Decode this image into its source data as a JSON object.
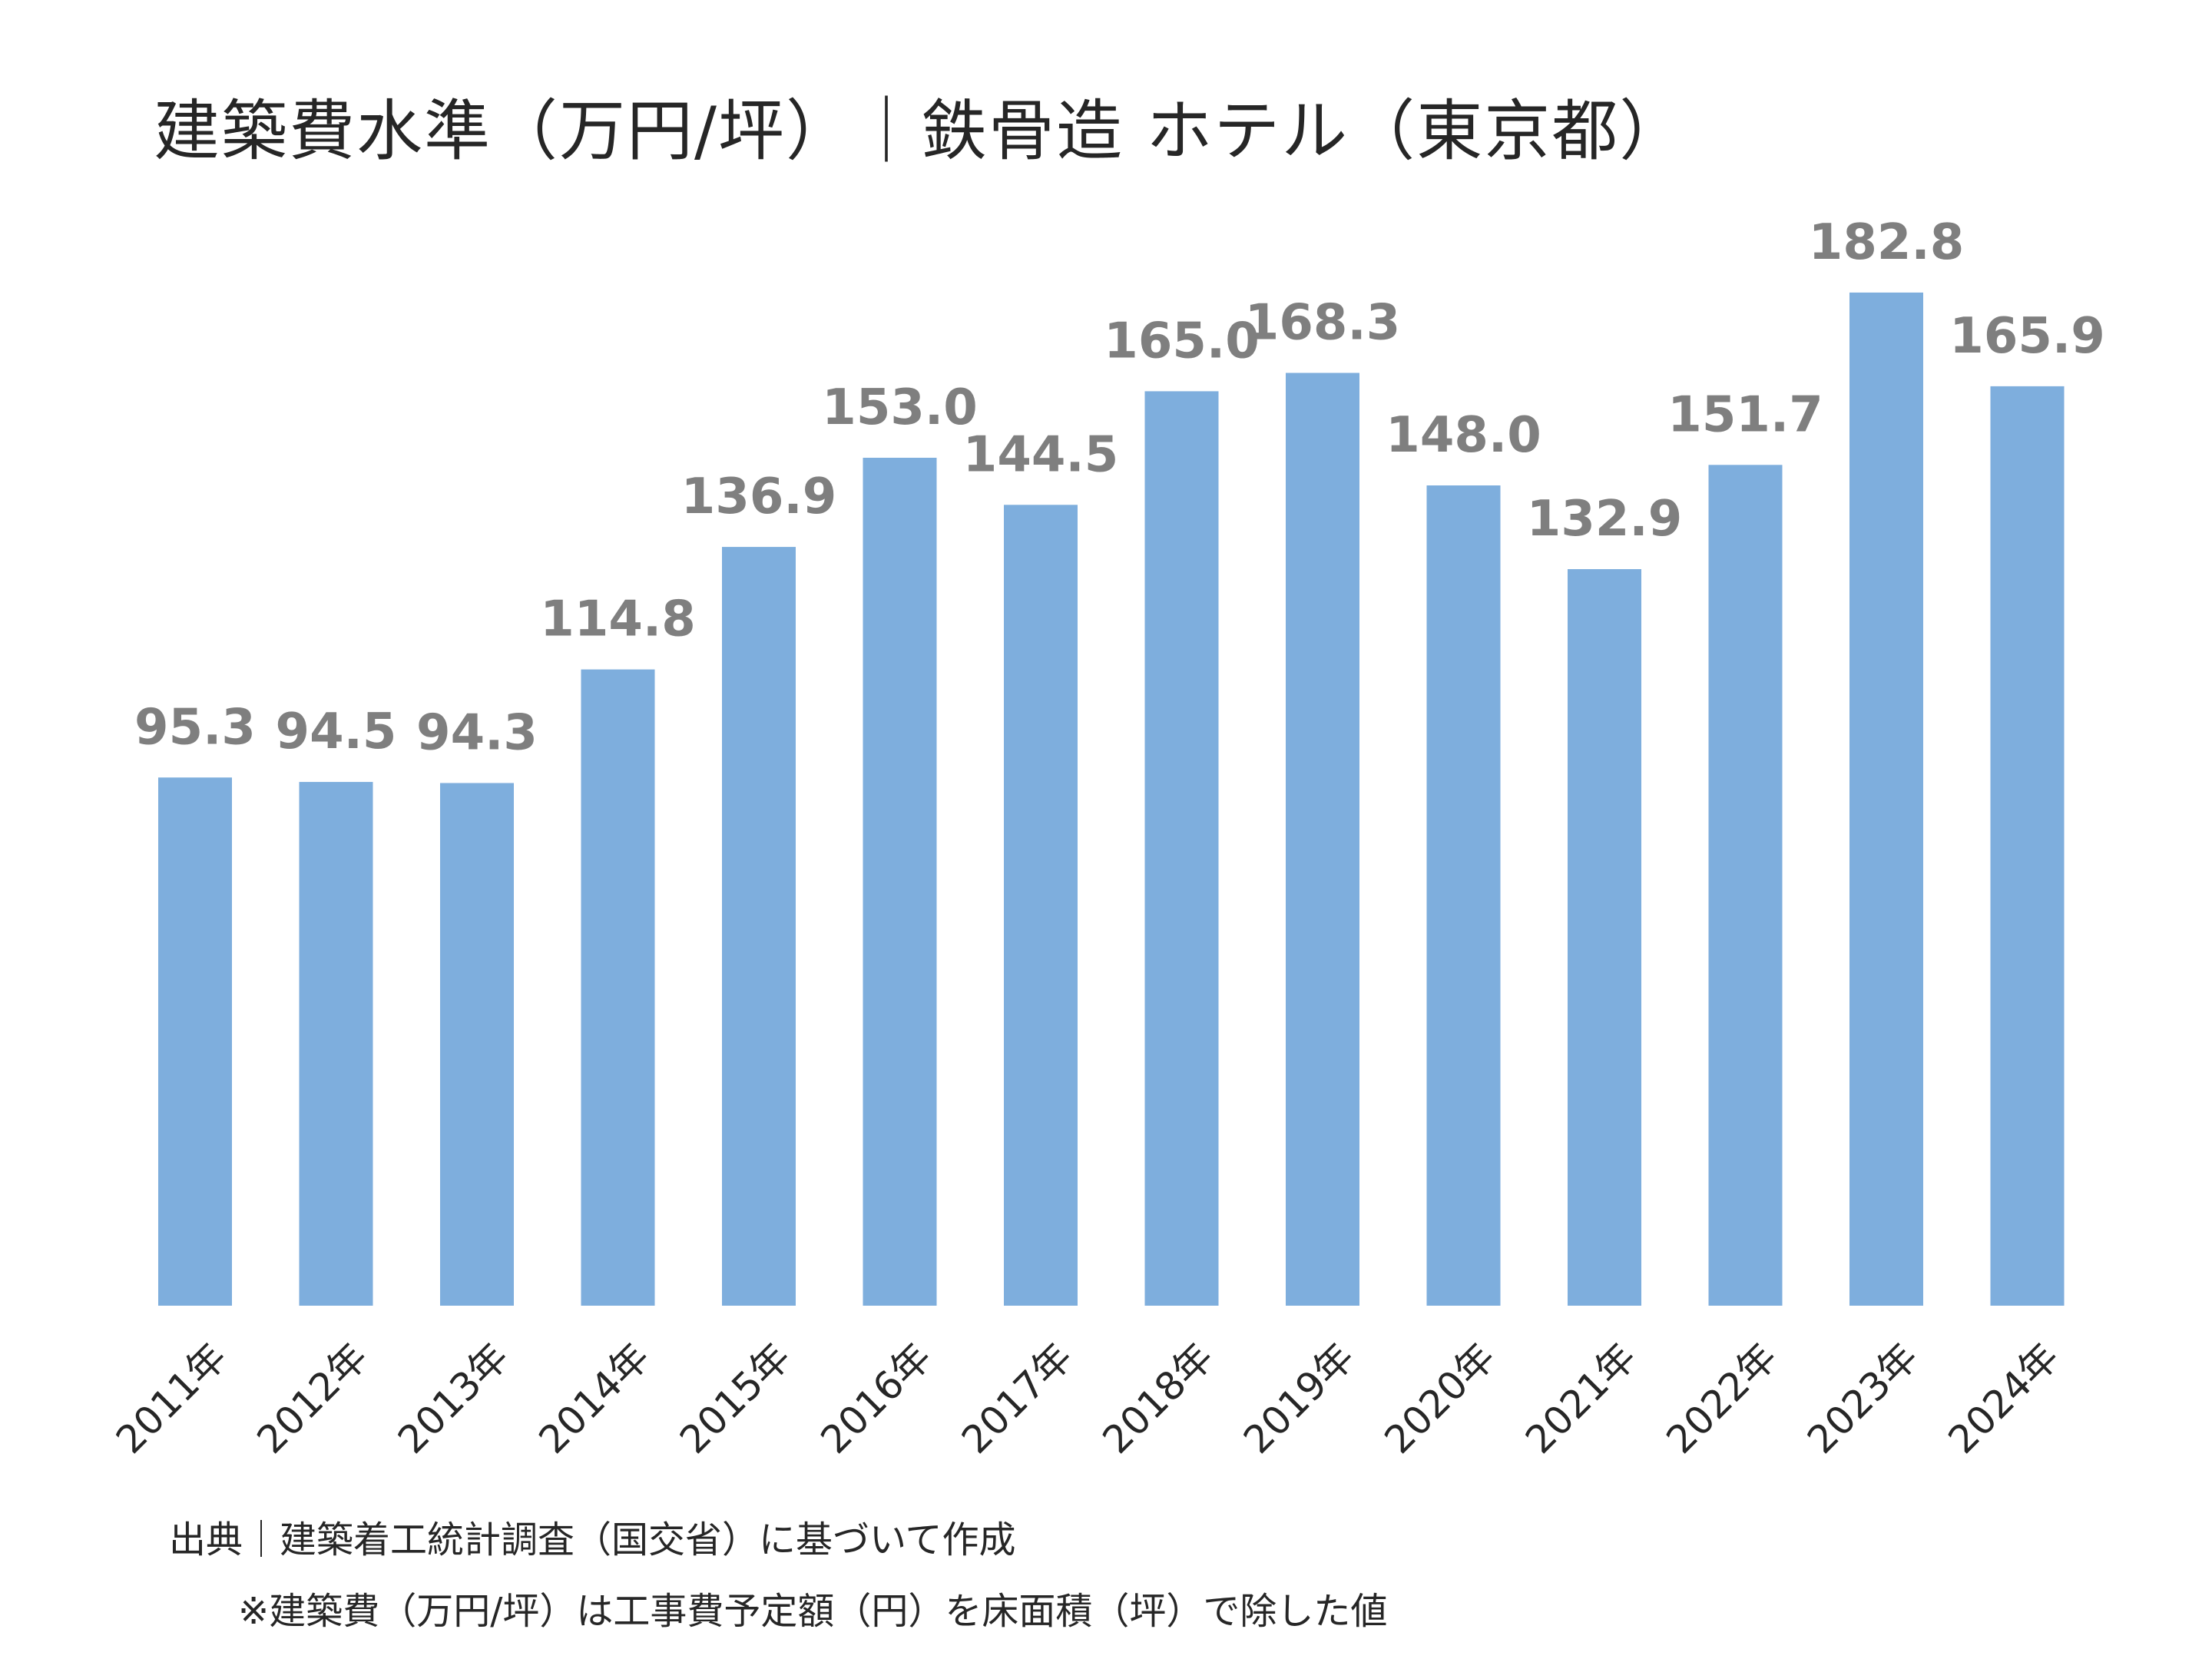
{
  "chart_data": {
    "type": "bar",
    "title": "建築費水準（万円/坪）｜鉄骨造 ホテル（東京都）",
    "categories": [
      "2011年",
      "2012年",
      "2013年",
      "2014年",
      "2015年",
      "2016年",
      "2017年",
      "2018年",
      "2019年",
      "2020年",
      "2021年",
      "2022年",
      "2023年",
      "2024年"
    ],
    "values": [
      95.3,
      94.5,
      94.3,
      114.8,
      136.9,
      153.0,
      144.5,
      165.0,
      168.3,
      148.0,
      132.9,
      151.7,
      182.8,
      165.9
    ],
    "value_labels": [
      "95.3",
      "94.5",
      "94.3",
      "114.8",
      "136.9",
      "153.0",
      "144.5",
      "165.0",
      "168.3",
      "148.0",
      "132.9",
      "151.7",
      "182.8",
      "165.9"
    ],
    "ylim": [
      0,
      200
    ],
    "grid": false,
    "legend": "none",
    "bar_color": "#7eaedd",
    "label_color": "#7f7f7f"
  },
  "notes": {
    "source": "出典｜建築着工統計調査（国交省）に基づいて作成",
    "footnote": "※建築費（万円/坪）は工事費予定額（円）を床面積（坪）で除した値"
  }
}
